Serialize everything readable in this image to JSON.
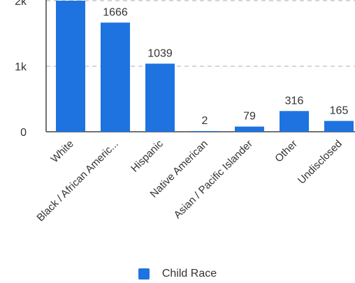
{
  "chart_data": {
    "type": "bar",
    "categories": [
      "White",
      "Black / African Americ...",
      "Hispanic",
      "Native American",
      "Asian / Pacific Islander",
      "Other",
      "Undisclosed"
    ],
    "series": [
      {
        "name": "Child Race",
        "values": [
          2000,
          1666,
          1039,
          2,
          79,
          316,
          165
        ],
        "color": "#1e73e0"
      }
    ],
    "data_labels": [
      "",
      "1666",
      "1039",
      "2",
      "79",
      "316",
      "165"
    ],
    "y_ticks": [
      0,
      1000,
      2000
    ],
    "y_tick_labels": [
      "0",
      "1k",
      "2k"
    ],
    "ylim": [
      0,
      2000
    ],
    "grid": "dashed",
    "legend_position": "bottom"
  }
}
